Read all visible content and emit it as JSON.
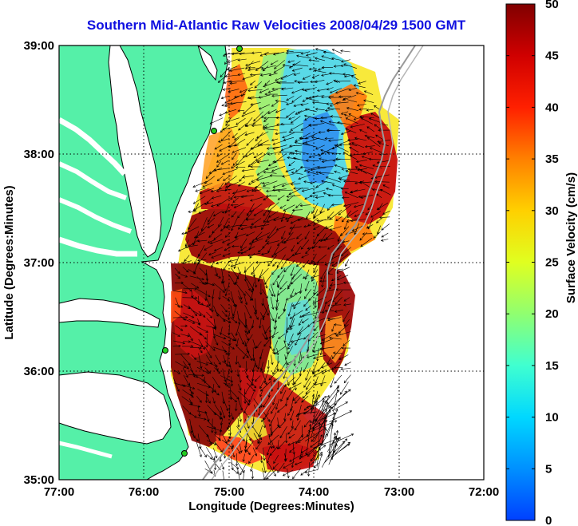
{
  "title": "Southern Mid-Atlantic Raw Velocities 2008/04/29 1500 GMT",
  "xaxis": {
    "label": "Longitude (Degrees:Minutes)",
    "ticks": [
      "77:00",
      "76:00",
      "75:00",
      "74:00",
      "73:00",
      "72:00"
    ]
  },
  "yaxis": {
    "label": "Latitude (Degrees:Minutes)",
    "ticks": [
      "39:00",
      "38:00",
      "37:00",
      "36:00",
      "35:00"
    ]
  },
  "colorbar": {
    "label": "Surface Velocity (cm/s)",
    "min": 0,
    "max": 50,
    "ticks": [
      "0",
      "5",
      "10",
      "15",
      "20",
      "25",
      "30",
      "35",
      "40",
      "45",
      "50"
    ]
  },
  "map_extent": {
    "lon": [
      -77,
      -72
    ],
    "lat": [
      35,
      39
    ]
  },
  "colors": {
    "title": "#1010e0",
    "land": "#55f0a8",
    "water": "#ffffff",
    "coast": "#000000",
    "station": "#22cc22"
  }
}
